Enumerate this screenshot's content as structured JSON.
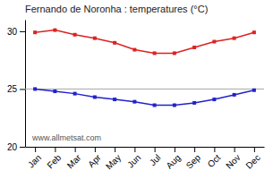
{
  "chart_data": {
    "type": "line",
    "title": "Fernando de Noronha : temperatures (°C)",
    "categories": [
      "Jan",
      "Feb",
      "Mar",
      "Apr",
      "May",
      "Jun",
      "Jul",
      "Aug",
      "Sep",
      "Oct",
      "Nov",
      "Dec"
    ],
    "series": [
      {
        "color": "#dd2222",
        "marker": "square",
        "values": [
          29.9,
          30.1,
          29.7,
          29.4,
          29.0,
          28.4,
          28.1,
          28.1,
          28.6,
          29.1,
          29.4,
          29.9
        ]
      },
      {
        "color": "#2222cc",
        "marker": "square",
        "values": [
          25.0,
          24.8,
          24.6,
          24.3,
          24.1,
          23.9,
          23.6,
          23.6,
          23.8,
          24.1,
          24.5,
          24.9
        ]
      }
    ],
    "hlines": [
      {
        "value": 25,
        "color": "#aaaaaa"
      }
    ],
    "annotations": [
      {
        "text": "www.allmetsat.com"
      }
    ],
    "ylim": [
      20,
      31
    ],
    "yticks": [
      20,
      25,
      30
    ],
    "grid": false
  }
}
